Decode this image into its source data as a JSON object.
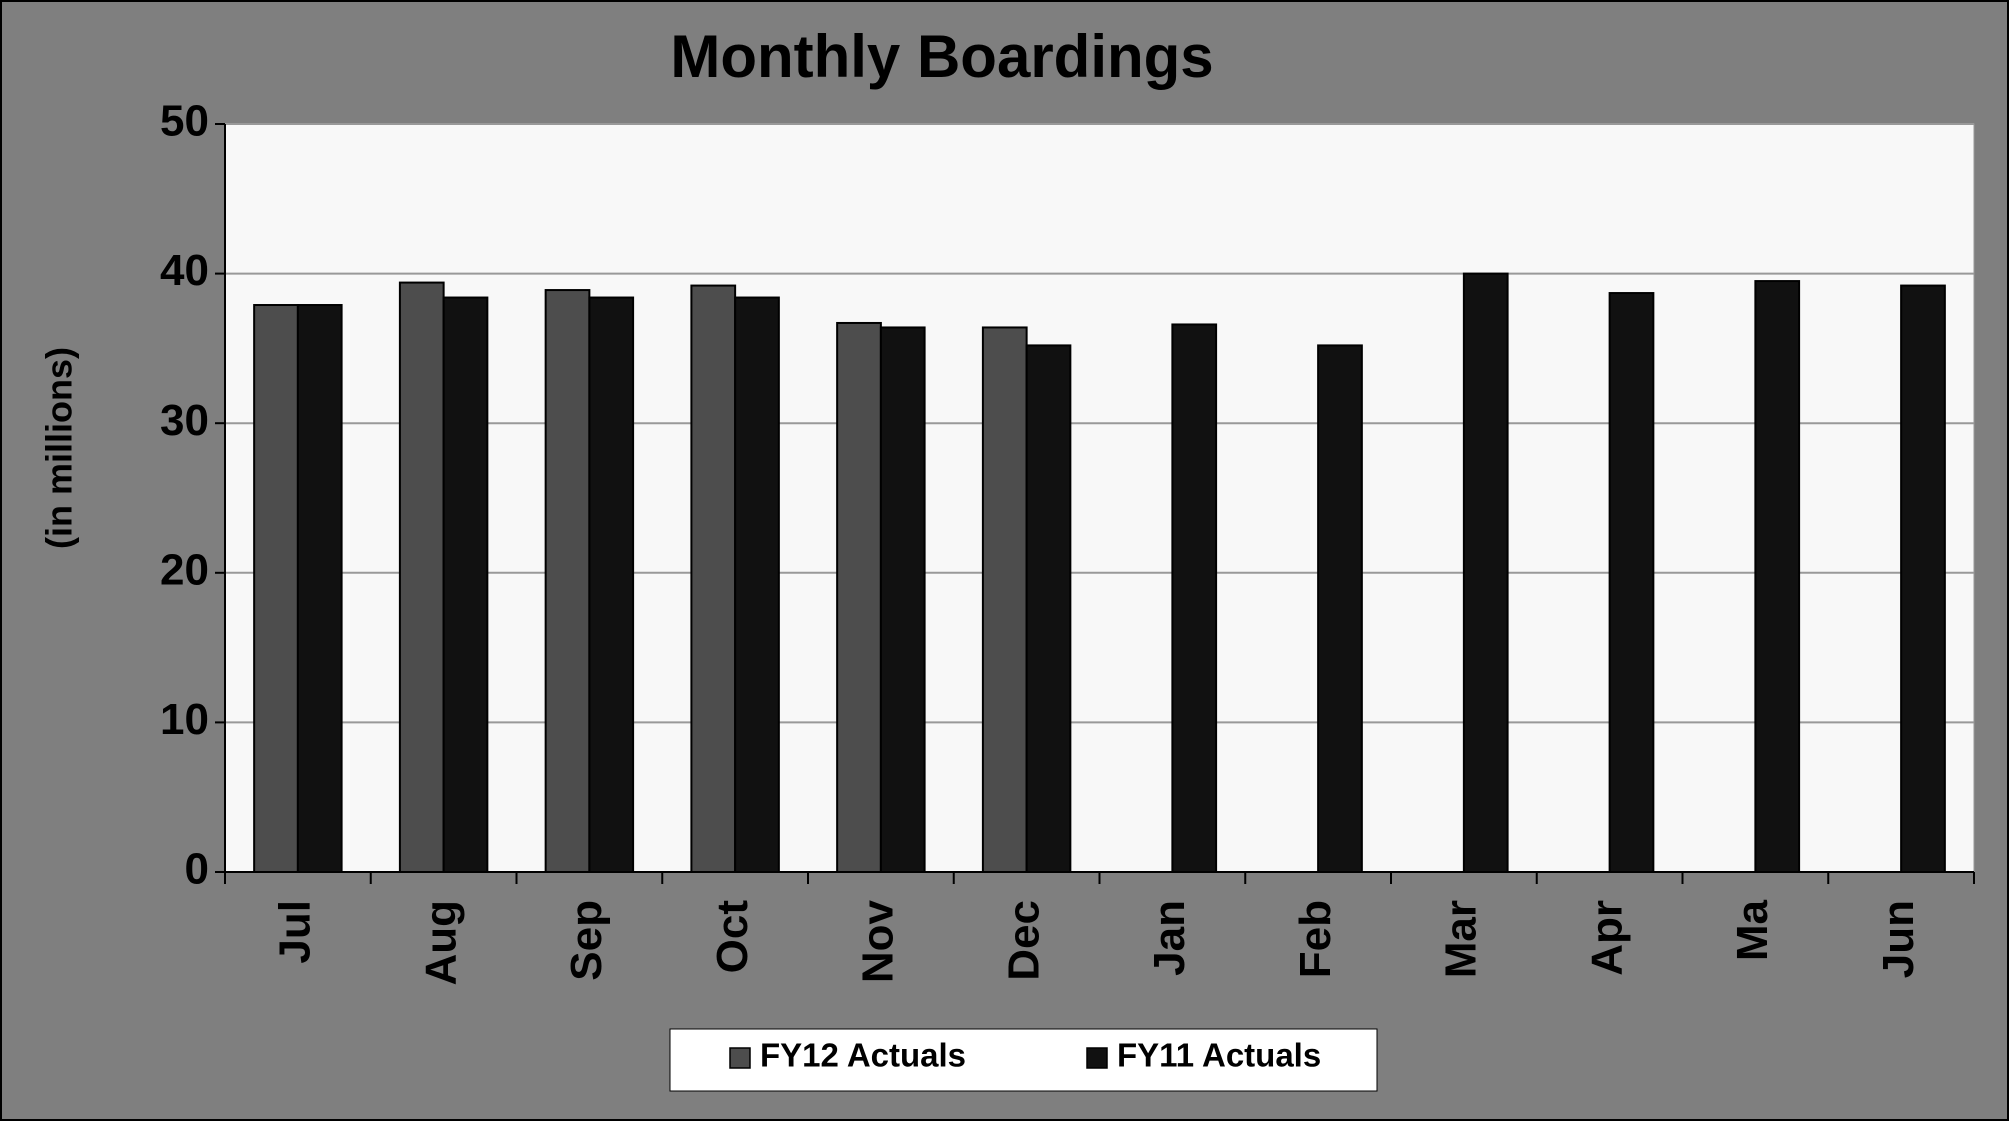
{
  "chart_data": {
    "type": "bar",
    "title": "Monthly Boardings",
    "y_label": "(in millions)",
    "categories": [
      "Jul",
      "Aug",
      "Sep",
      "Oct",
      "Nov",
      "Dec",
      "Jan",
      "Feb",
      "Mar",
      "Apr",
      "Ma",
      "Jun"
    ],
    "series": [
      {
        "name": "FY12 Actuals",
        "color": "#4d4d4d",
        "values": [
          37.9,
          39.4,
          38.9,
          39.2,
          36.7,
          36.4,
          null,
          null,
          null,
          null,
          null,
          null
        ]
      },
      {
        "name": "FY11 Actuals",
        "color": "#111111",
        "values": [
          37.9,
          38.4,
          38.4,
          38.4,
          36.4,
          35.2,
          36.6,
          35.2,
          40.0,
          38.7,
          39.5,
          39.2
        ]
      }
    ],
    "ylim": [
      0,
      50
    ],
    "yticks": [
      0,
      10,
      20,
      30,
      40,
      50
    ],
    "grid": true,
    "legend": "bottom"
  }
}
